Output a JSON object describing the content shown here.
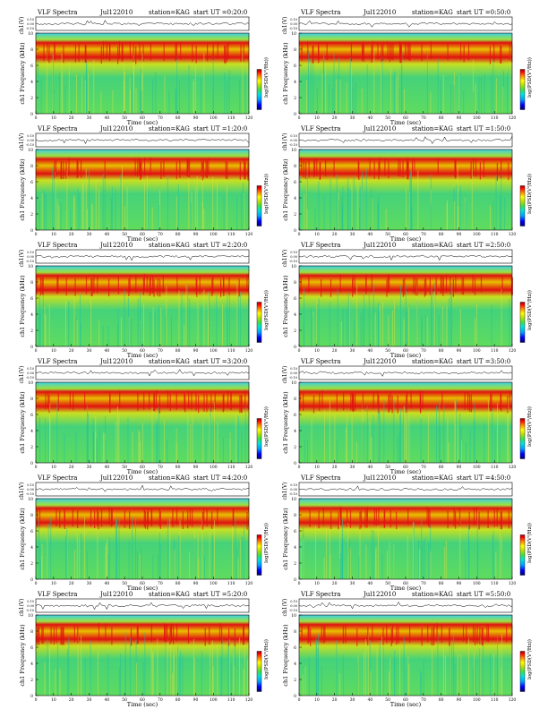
{
  "colors": {
    "spectrogram_low": "#1ec8c8",
    "spectrogram_mid": "#5fdc5f",
    "spectrogram_high": "#e8e000",
    "spectrogram_peak": "#e01010",
    "band_top": "#3cd2e6",
    "colorbar": [
      "#000078",
      "#0000ff",
      "#00a0ff",
      "#00e0e0",
      "#40e040",
      "#c0e000",
      "#ffff00",
      "#ff8000",
      "#ff0000",
      "#a00000"
    ]
  },
  "chart_data": [
    {
      "type": "heatmap",
      "title": "VLF Spectra",
      "date": "Jul122010",
      "station": "station=KAG",
      "start": "start UT =0:20:0",
      "top_ylabel": "ch1(V)",
      "top_yticks": [
        "0.10",
        "0.00",
        "-0.10"
      ],
      "ylabel": "ch1 Frequency (kHz)",
      "yticks": [
        "0",
        "2",
        "4",
        "6",
        "8",
        "10"
      ],
      "ylim": [
        0,
        10
      ],
      "xlabel": "Time (sec)",
      "xticks": [
        "0",
        "10",
        "20",
        "30",
        "40",
        "50",
        "60",
        "70",
        "80",
        "90",
        "100",
        "110",
        "120"
      ],
      "xlim": [
        0,
        120
      ],
      "colorbar_label": "log(PSD(V²/Hz))"
    },
    {
      "type": "heatmap",
      "title": "VLF Spectra",
      "date": "Jul122010",
      "station": "station=KAG",
      "start": "start UT =0:50:0",
      "top_ylabel": "ch1(V)",
      "top_yticks": [
        "0.10",
        "0.00",
        "-0.10"
      ],
      "ylabel": "ch1 Frequency (kHz)",
      "yticks": [
        "0",
        "2",
        "4",
        "6",
        "8",
        "10"
      ],
      "ylim": [
        0,
        10
      ],
      "xlabel": "Time (sec)",
      "xticks": [
        "0",
        "10",
        "20",
        "30",
        "40",
        "50",
        "60",
        "70",
        "80",
        "90",
        "100",
        "110",
        "120"
      ],
      "xlim": [
        0,
        120
      ],
      "colorbar_label": "log(PSD(V²/Hz))"
    },
    {
      "type": "heatmap",
      "title": "VLF Spectra",
      "date": "Jul122010",
      "station": "station=KAG",
      "start": "start UT =1:20:0",
      "top_ylabel": "ch1(V)",
      "top_yticks": [
        "0.10",
        "0.00",
        "-0.10"
      ],
      "ylabel": "ch1 Frequency (kHz)",
      "yticks": [
        "0",
        "2",
        "4",
        "6",
        "8",
        "10"
      ],
      "ylim": [
        0,
        10
      ],
      "xlabel": "Time (sec)",
      "xticks": [
        "0",
        "10",
        "20",
        "30",
        "40",
        "50",
        "60",
        "70",
        "80",
        "90",
        "100",
        "110",
        "120"
      ],
      "xlim": [
        0,
        120
      ],
      "colorbar_label": "log(PSD(V²/Hz))"
    },
    {
      "type": "heatmap",
      "title": "VLF Spectra",
      "date": "Jul122010",
      "station": "station=KAG",
      "start": "start UT =1:50:0",
      "top_ylabel": "ch1(V)",
      "top_yticks": [
        "0.10",
        "0.00",
        "-0.10"
      ],
      "ylabel": "ch1 Frequency (kHz)",
      "yticks": [
        "0",
        "2",
        "4",
        "6",
        "8",
        "10"
      ],
      "ylim": [
        0,
        10
      ],
      "xlabel": "Time (sec)",
      "xticks": [
        "0",
        "10",
        "20",
        "30",
        "40",
        "50",
        "60",
        "70",
        "80",
        "90",
        "100",
        "110",
        "120"
      ],
      "xlim": [
        0,
        120
      ],
      "colorbar_label": "log(PSD(V²/Hz))"
    },
    {
      "type": "heatmap",
      "title": "VLF Spectra",
      "date": "Jul122010",
      "station": "station=KAG",
      "start": "start UT =2:20:0",
      "top_ylabel": "ch1(V)",
      "top_yticks": [
        "0.10",
        "0.00",
        "-0.10"
      ],
      "ylabel": "ch1 Frequency (kHz)",
      "yticks": [
        "0",
        "2",
        "4",
        "6",
        "8",
        "10"
      ],
      "ylim": [
        0,
        10
      ],
      "xlabel": "Time (sec)",
      "xticks": [
        "0",
        "10",
        "20",
        "30",
        "40",
        "50",
        "60",
        "70",
        "80",
        "90",
        "100",
        "110",
        "120"
      ],
      "xlim": [
        0,
        120
      ],
      "colorbar_label": "log(PSD(V²/Hz))"
    },
    {
      "type": "heatmap",
      "title": "VLF Spectra",
      "date": "Jul122010",
      "station": "station=KAG",
      "start": "start UT =2:50:0",
      "top_ylabel": "ch1(V)",
      "top_yticks": [
        "0.10",
        "0.00",
        "-0.10"
      ],
      "ylabel": "ch1 Frequency (kHz)",
      "yticks": [
        "0",
        "2",
        "4",
        "6",
        "8",
        "10"
      ],
      "ylim": [
        0,
        10
      ],
      "xlabel": "Time (sec)",
      "xticks": [
        "0",
        "10",
        "20",
        "30",
        "40",
        "50",
        "60",
        "70",
        "80",
        "90",
        "100",
        "110",
        "120"
      ],
      "xlim": [
        0,
        120
      ],
      "colorbar_label": "log(PSD(V²/Hz))"
    },
    {
      "type": "heatmap",
      "title": "VLF Spectra",
      "date": "Jul122010",
      "station": "station=KAG",
      "start": "start UT =3:20:0",
      "top_ylabel": "ch1(V)",
      "top_yticks": [
        "0.10",
        "0.00",
        "-0.10"
      ],
      "ylabel": "ch1 Frequency (kHz)",
      "yticks": [
        "0",
        "2",
        "4",
        "6",
        "8",
        "10"
      ],
      "ylim": [
        0,
        10
      ],
      "xlabel": "Time (sec)",
      "xticks": [
        "0",
        "10",
        "20",
        "30",
        "40",
        "50",
        "60",
        "70",
        "80",
        "90",
        "100",
        "110",
        "120"
      ],
      "xlim": [
        0,
        120
      ],
      "colorbar_label": "log(PSD(V²/Hz))"
    },
    {
      "type": "heatmap",
      "title": "VLF Spectra",
      "date": "Jul122010",
      "station": "station=KAG",
      "start": "start UT =3:50:0",
      "top_ylabel": "ch1(V)",
      "top_yticks": [
        "0.10",
        "0.00",
        "-0.10"
      ],
      "ylabel": "ch1 Frequency (kHz)",
      "yticks": [
        "0",
        "2",
        "4",
        "6",
        "8",
        "10"
      ],
      "ylim": [
        0,
        10
      ],
      "xlabel": "Time (sec)",
      "xticks": [
        "0",
        "10",
        "20",
        "30",
        "40",
        "50",
        "60",
        "70",
        "80",
        "90",
        "100",
        "110",
        "120"
      ],
      "xlim": [
        0,
        120
      ],
      "colorbar_label": "log(PSD(V²/Hz))"
    },
    {
      "type": "heatmap",
      "title": "VLF Spectra",
      "date": "Jul122010",
      "station": "station=KAG",
      "start": "start UT =4:20:0",
      "top_ylabel": "ch1(V)",
      "top_yticks": [
        "0.10",
        "0.00",
        "-0.10"
      ],
      "ylabel": "ch1 Frequency (kHz)",
      "yticks": [
        "0",
        "2",
        "4",
        "6",
        "8",
        "10"
      ],
      "ylim": [
        0,
        10
      ],
      "xlabel": "Time (sec)",
      "xticks": [
        "0",
        "10",
        "20",
        "30",
        "40",
        "50",
        "60",
        "70",
        "80",
        "90",
        "100",
        "110",
        "120"
      ],
      "xlim": [
        0,
        120
      ],
      "colorbar_label": "log(PSD(V²/Hz))"
    },
    {
      "type": "heatmap",
      "title": "VLF Spectra",
      "date": "Jul122010",
      "station": "station=KAG",
      "start": "start UT =4:50:0",
      "top_ylabel": "ch1(V)",
      "top_yticks": [
        "0.10",
        "0.00",
        "-0.10"
      ],
      "ylabel": "ch1 Frequency (kHz)",
      "yticks": [
        "0",
        "2",
        "4",
        "6",
        "8",
        "10"
      ],
      "ylim": [
        0,
        10
      ],
      "xlabel": "Time (sec)",
      "xticks": [
        "0",
        "10",
        "20",
        "30",
        "40",
        "50",
        "60",
        "70",
        "80",
        "90",
        "100",
        "110",
        "120"
      ],
      "xlim": [
        0,
        120
      ],
      "colorbar_label": "log(PSD(V²/Hz))"
    },
    {
      "type": "heatmap",
      "title": "VLF Spectra",
      "date": "Jul122010",
      "station": "station=KAG",
      "start": "start UT =5:20:0",
      "top_ylabel": "ch1(V)",
      "top_yticks": [
        "0.10",
        "0.00",
        "-0.10"
      ],
      "ylabel": "ch1 Frequency (kHz)",
      "yticks": [
        "0",
        "2",
        "4",
        "6",
        "8",
        "10"
      ],
      "ylim": [
        0,
        10
      ],
      "xlabel": "Time (sec)",
      "xticks": [
        "0",
        "10",
        "20",
        "30",
        "40",
        "50",
        "60",
        "70",
        "80",
        "90",
        "100",
        "110",
        "120"
      ],
      "xlim": [
        0,
        120
      ],
      "colorbar_label": "log(PSD(V²/Hz))"
    },
    {
      "type": "heatmap",
      "title": "VLF Spectra",
      "date": "Jul122010",
      "station": "station=KAG",
      "start": "start UT =5:50:0",
      "top_ylabel": "ch1(V)",
      "top_yticks": [
        "0.10",
        "0.00",
        "-0.10"
      ],
      "ylabel": "ch1 Frequency (kHz)",
      "yticks": [
        "0",
        "2",
        "4",
        "6",
        "8",
        "10"
      ],
      "ylim": [
        0,
        10
      ],
      "xlabel": "Time (sec)",
      "xticks": [
        "0",
        "10",
        "20",
        "30",
        "40",
        "50",
        "60",
        "70",
        "80",
        "90",
        "100",
        "110",
        "120"
      ],
      "xlim": [
        0,
        120
      ],
      "colorbar_label": "log(PSD(V²/Hz))"
    }
  ]
}
